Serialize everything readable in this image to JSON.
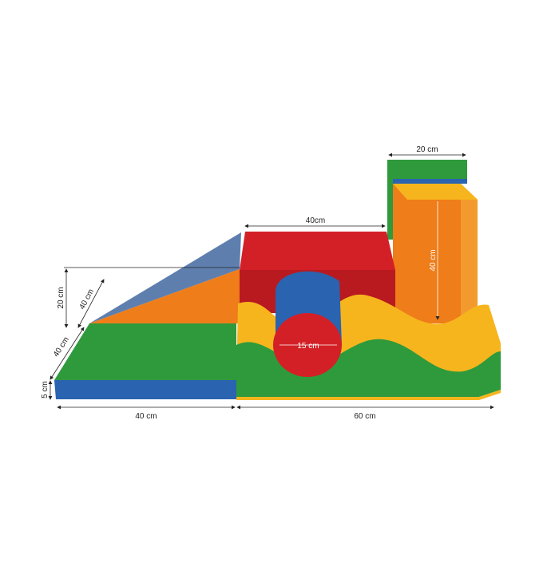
{
  "colors": {
    "green": "#2f9a3c",
    "blue": "#2a63b0",
    "slate": "#5e7fae",
    "orange": "#ee7d1a",
    "red": "#d32027",
    "yellow": "#f7b51d"
  },
  "dimensions": {
    "cube_width": "40cm",
    "column_width": "20 cm",
    "column_height": "40 cm",
    "wedge_height": "20 cm",
    "wedge_slope": "40 cm",
    "mat_depth": "40 cm",
    "mat_thickness": "5 cm",
    "mat_width": "40 cm",
    "wave_width": "60 cm",
    "cylinder_diameter": "15 cm"
  }
}
